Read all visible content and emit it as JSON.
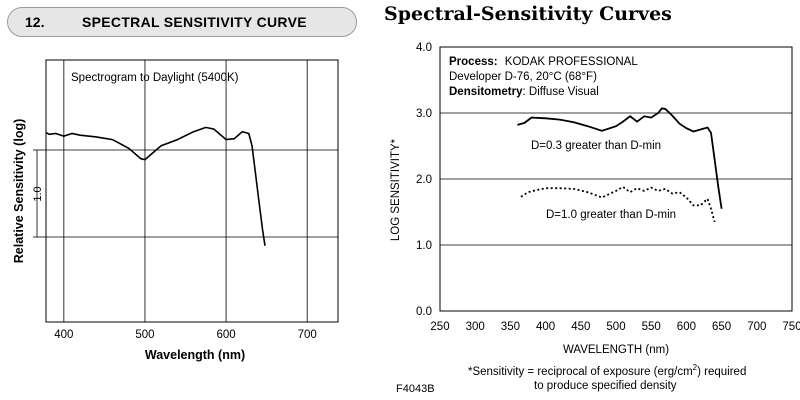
{
  "left_header": {
    "number": "12.",
    "title": "SPECTRAL SENSITIVITY CURVE"
  },
  "right_title": "Spectral-Sensitivity Curves",
  "chart_data": [
    {
      "type": "line",
      "annotation": "Spectrogram to Daylight (5400K)",
      "xlabel": "Wavelength (nm)",
      "ylabel": "Relative Sensitivity (log)",
      "xlim": [
        378,
        738
      ],
      "xticks": [
        400,
        500,
        600,
        700
      ],
      "scale_bar_label": "1.0",
      "series": [
        {
          "name": "Daylight",
          "x": [
            378,
            382,
            390,
            400,
            410,
            420,
            440,
            460,
            480,
            495,
            500,
            510,
            520,
            540,
            560,
            575,
            585,
            600,
            610,
            620,
            628,
            632,
            636,
            640,
            645,
            648
          ],
          "y": [
            0.2,
            0.18,
            0.19,
            0.16,
            0.19,
            0.17,
            0.15,
            0.12,
            0.02,
            -0.1,
            -0.11,
            -0.03,
            0.05,
            0.12,
            0.21,
            0.26,
            0.24,
            0.12,
            0.13,
            0.21,
            0.19,
            0.05,
            -0.25,
            -0.55,
            -0.92,
            -1.1
          ]
        }
      ]
    },
    {
      "type": "line",
      "process_label": "Process:",
      "process_value": "KODAK PROFESSIONAL",
      "process_line2": "Developer D-76, 20°C (68°F)",
      "densitometry_label": "Densitometry",
      "densitometry_value": ": Diffuse Visual",
      "xlabel": "WAVELENGTH (nm)",
      "ylabel": "LOG SENSITIVITY*",
      "xlim": [
        250,
        750
      ],
      "ylim": [
        0,
        4
      ],
      "xticks": [
        250,
        300,
        350,
        400,
        450,
        500,
        550,
        600,
        650,
        700,
        750
      ],
      "yticks": [
        "0.0",
        "1.0",
        "2.0",
        "3.0",
        "4.0"
      ],
      "series": [
        {
          "name": "D=0.3 greater than D-min",
          "style": "solid",
          "x": [
            360,
            370,
            380,
            400,
            420,
            440,
            460,
            480,
            500,
            510,
            520,
            530,
            540,
            550,
            560,
            565,
            570,
            580,
            590,
            600,
            610,
            620,
            630,
            635,
            640,
            645,
            650
          ],
          "y": [
            2.82,
            2.85,
            2.93,
            2.92,
            2.9,
            2.86,
            2.8,
            2.73,
            2.8,
            2.87,
            2.95,
            2.87,
            2.95,
            2.93,
            3.0,
            3.07,
            3.06,
            2.96,
            2.84,
            2.77,
            2.72,
            2.75,
            2.78,
            2.7,
            2.3,
            1.9,
            1.55
          ]
        },
        {
          "name": "D=1.0 greater than D-min",
          "style": "dotted",
          "x": [
            365,
            375,
            390,
            400,
            420,
            440,
            460,
            480,
            500,
            510,
            520,
            530,
            540,
            550,
            560,
            570,
            580,
            590,
            600,
            610,
            620,
            630,
            635,
            640
          ],
          "y": [
            1.73,
            1.8,
            1.84,
            1.86,
            1.86,
            1.85,
            1.8,
            1.72,
            1.82,
            1.88,
            1.8,
            1.86,
            1.82,
            1.87,
            1.82,
            1.85,
            1.78,
            1.8,
            1.72,
            1.6,
            1.6,
            1.7,
            1.55,
            1.35
          ]
        }
      ]
    }
  ],
  "footnote": {
    "line1_start": "*Sensitivity = reciprocal of exposure (erg/cm",
    "line1_sup": "2",
    "line1_end": ") required",
    "line2": "to produce specified density"
  },
  "figure_id": "F4043B"
}
